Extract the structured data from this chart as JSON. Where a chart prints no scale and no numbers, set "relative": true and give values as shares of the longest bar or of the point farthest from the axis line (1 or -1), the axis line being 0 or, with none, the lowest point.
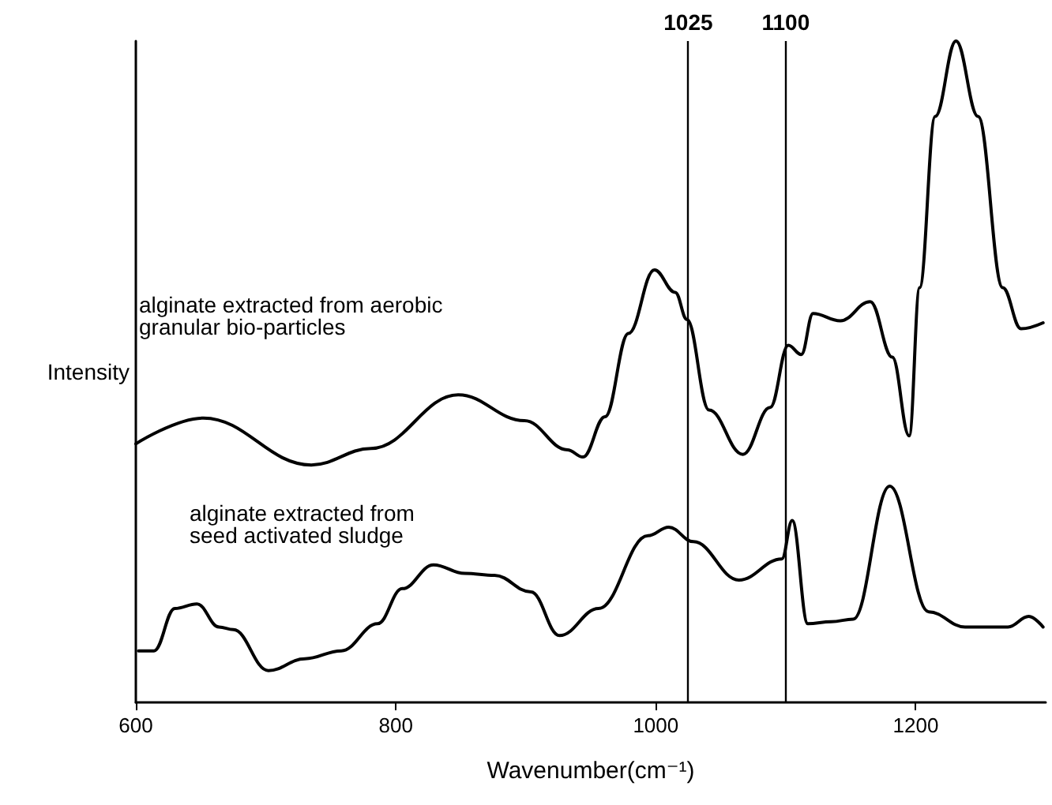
{
  "chart_data": {
    "type": "line",
    "relative": true,
    "xlabel": "Wavenumber(cm⁻¹)",
    "ylabel": "Intensity",
    "xlim": [
      600,
      1300
    ],
    "xticks": [
      600,
      800,
      1000,
      1200
    ],
    "legend": false,
    "grid": false,
    "marker": "none",
    "line_style": "solid",
    "tick_labels": "x",
    "ref_lines": [
      {
        "axis": "x",
        "value": 1025,
        "label": "1025",
        "color": "#000000"
      },
      {
        "axis": "x",
        "value": 1100,
        "label": "1100",
        "color": "#000000"
      }
    ],
    "series": [
      {
        "name": "alginate extracted from aerobic granular bio-particles",
        "color": "#000000",
        "x": [
          600,
          652,
          735,
          781,
          848,
          899,
          932,
          944,
          961,
          979,
          999,
          1015,
          1024,
          1041,
          1067,
          1088,
          1102,
          1112,
          1121,
          1142,
          1165,
          1182,
          1195,
          1203,
          1215,
          1231,
          1248,
          1267,
          1281,
          1298
        ],
        "values": [
          0.391,
          0.43,
          0.359,
          0.384,
          0.465,
          0.426,
          0.382,
          0.371,
          0.432,
          0.558,
          0.654,
          0.62,
          0.579,
          0.442,
          0.375,
          0.446,
          0.54,
          0.526,
          0.588,
          0.577,
          0.606,
          0.522,
          0.403,
          0.627,
          0.886,
          1,
          0.886,
          0.627,
          0.565,
          0.574
        ]
      },
      {
        "name": "alginate extracted from seed activated sludge",
        "color": "#000000",
        "x": [
          602,
          614,
          630,
          647,
          664,
          675,
          702,
          730,
          758,
          786,
          805,
          829,
          853,
          876,
          904,
          926,
          956,
          994,
          1010,
          1029,
          1064,
          1097,
          1105,
          1117,
          1135,
          1152,
          1180,
          1210,
          1238,
          1271,
          1287,
          1298
        ],
        "values": [
          0.078,
          0.078,
          0.142,
          0.149,
          0.114,
          0.11,
          0.048,
          0.066,
          0.078,
          0.119,
          0.172,
          0.208,
          0.195,
          0.192,
          0.167,
          0.101,
          0.142,
          0.252,
          0.265,
          0.243,
          0.185,
          0.217,
          0.275,
          0.119,
          0.122,
          0.126,
          0.327,
          0.137,
          0.114,
          0.114,
          0.13,
          0.114
        ]
      }
    ]
  }
}
